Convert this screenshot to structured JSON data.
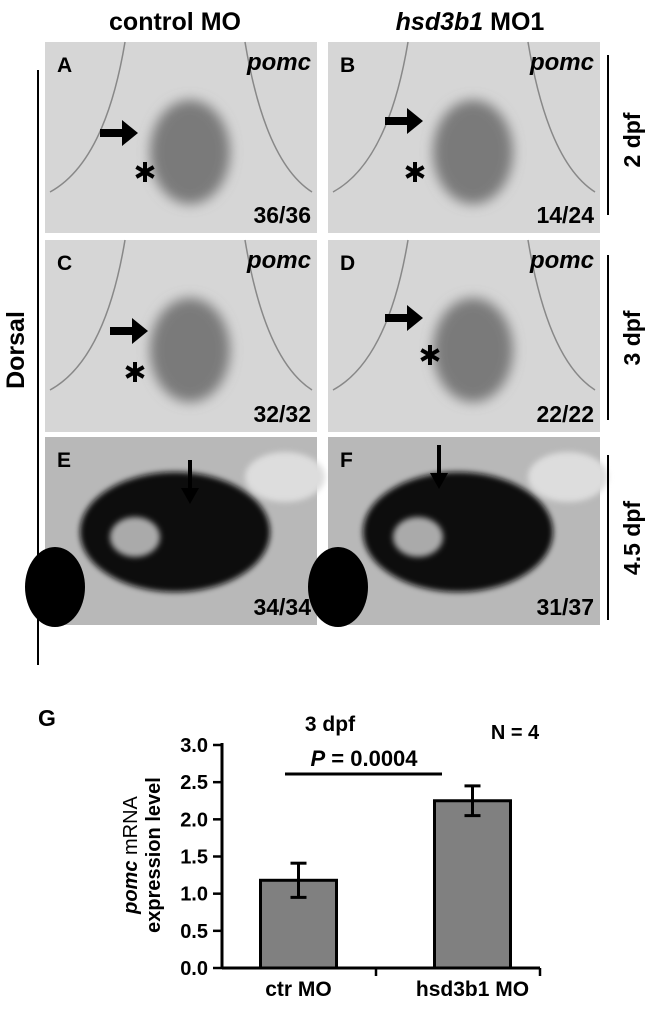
{
  "headers": {
    "control": "control MO",
    "treated_gene": "hsd3b1",
    "treated_rest": "MO1"
  },
  "side_label": "Dorsal",
  "row_labels": [
    "2 dpf",
    "3 dpf",
    "4.5 dpf"
  ],
  "panels": [
    {
      "letter": "A",
      "gene": "pomc",
      "count": "36/36"
    },
    {
      "letter": "B",
      "gene": "pomc",
      "count": "14/24"
    },
    {
      "letter": "C",
      "gene": "pomc",
      "count": "32/32"
    },
    {
      "letter": "D",
      "gene": "pomc",
      "count": "22/22"
    },
    {
      "letter": "E",
      "count": "34/34"
    },
    {
      "letter": "F",
      "count": "31/37"
    }
  ],
  "chart_data": {
    "type": "bar",
    "panel_letter": "G",
    "title": "3 dpf",
    "p_symbol": "P",
    "p_value": "= 0.0004",
    "annotation": "N = 4",
    "ylabel_gene": "pomc",
    "ylabel_rest": "mRNA",
    "ylabel_line2": "expression level",
    "categories": [
      "ctr MO",
      "hsd3b1 MO"
    ],
    "values": [
      1.18,
      2.25
    ],
    "errors": [
      0.23,
      0.2
    ],
    "color": "#808080",
    "ylim": [
      0,
      3
    ],
    "yticks": [
      {
        "value": 0,
        "label": "0.0"
      },
      0.5,
      {
        "value": 1,
        "label": "1.0"
      },
      1.5,
      {
        "value": 2,
        "label": "2.0"
      },
      2.5,
      {
        "value": 3,
        "label": "3.0"
      }
    ]
  }
}
